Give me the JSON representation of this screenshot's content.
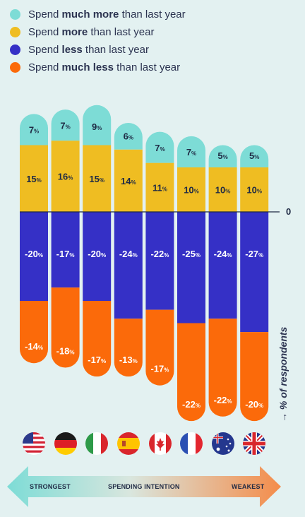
{
  "legend": [
    {
      "pre": "Spend ",
      "bold": "much more",
      "post": " than last year",
      "color": "#7ddcd6"
    },
    {
      "pre": "Spend ",
      "bold": "more",
      "post": " than last year",
      "color": "#efbd22"
    },
    {
      "pre": "Spend ",
      "bold": "less",
      "post": " than last year",
      "color": "#3530c6"
    },
    {
      "pre": "Spend ",
      "bold": "much less",
      "post": " than last year",
      "color": "#fb6a0a"
    }
  ],
  "chart_data": {
    "type": "bar",
    "stacked": true,
    "categories": [
      "USA",
      "Germany",
      "Italy",
      "Spain",
      "Canada",
      "France",
      "Australia",
      "UK"
    ],
    "series": [
      {
        "name": "Spend much more than last year",
        "color": "#7ddcd6",
        "values": [
          7,
          7,
          9,
          6,
          7,
          7,
          5,
          5
        ]
      },
      {
        "name": "Spend more than last year",
        "color": "#efbd22",
        "values": [
          15,
          16,
          15,
          14,
          11,
          10,
          10,
          10
        ]
      },
      {
        "name": "Spend less than last year",
        "color": "#3530c6",
        "values": [
          -20,
          -17,
          -20,
          -24,
          -22,
          -25,
          -24,
          -27
        ]
      },
      {
        "name": "Spend much less than last year",
        "color": "#fb6a0a",
        "values": [
          -14,
          -18,
          -17,
          -13,
          -17,
          -22,
          -22,
          -20
        ]
      }
    ],
    "zero_label": "0",
    "value_suffix": "%",
    "ylabel": "% of respondents",
    "grid": false
  },
  "ylabel_arrow": "→",
  "scale": {
    "left": "STRONGEST",
    "center": "SPENDING INTENTION",
    "right": "WEAKEST"
  }
}
